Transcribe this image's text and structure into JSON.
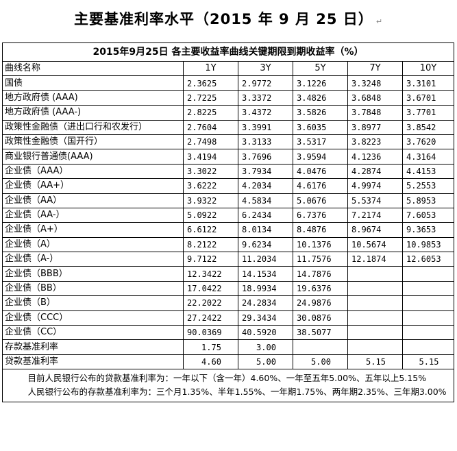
{
  "title": "主要基准利率水平（2015 年 9 月 25 日）",
  "return_mark": "↵",
  "table": {
    "caption": "2015年9月25日 各主要收益率曲线关键期限到期收益率（%）",
    "headers": [
      "曲线名称",
      "1Y",
      "3Y",
      "5Y",
      "7Y",
      "10Y"
    ],
    "rows": [
      {
        "name": "国债",
        "values": [
          "2.3625",
          "2.9772",
          "3.1226",
          "3.3248",
          "3.3101"
        ]
      },
      {
        "name": "地方政府债 (AAA)",
        "values": [
          "2.7225",
          "3.3372",
          "3.4826",
          "3.6848",
          "3.6701"
        ]
      },
      {
        "name": "地方政府债 (AAA-)",
        "values": [
          "2.8225",
          "3.4372",
          "3.5826",
          "3.7848",
          "3.7701"
        ]
      },
      {
        "name": "政策性金融债（进出口行和农发行）",
        "values": [
          "2.7604",
          "3.3991",
          "3.6035",
          "3.8977",
          "3.8542"
        ]
      },
      {
        "name": "政策性金融债（国开行）",
        "values": [
          "2.7498",
          "3.3133",
          "3.5317",
          "3.8223",
          "3.7620"
        ]
      },
      {
        "name": "商业银行普通债(AAA)",
        "values": [
          "3.4194",
          "3.7696",
          "3.9594",
          "4.1236",
          "4.3164"
        ]
      },
      {
        "name": "企业债（AAA）",
        "values": [
          "3.3022",
          "3.7934",
          "4.0476",
          "4.2874",
          "4.4153"
        ]
      },
      {
        "name": "企业债（AA+）",
        "values": [
          "3.6222",
          "4.2034",
          "4.6176",
          "4.9974",
          "5.2553"
        ]
      },
      {
        "name": "企业债（AA）",
        "values": [
          "3.9322",
          "4.5834",
          "5.0676",
          "5.5374",
          "5.8953"
        ]
      },
      {
        "name": "企业债（AA-）",
        "values": [
          "5.0922",
          "6.2434",
          "6.7376",
          "7.2174",
          "7.6053"
        ]
      },
      {
        "name": "企业债（A+）",
        "values": [
          "6.6122",
          "8.0134",
          "8.4876",
          "8.9674",
          "9.3653"
        ]
      },
      {
        "name": "企业债（A）",
        "values": [
          "8.2122",
          "9.6234",
          "10.1376",
          "10.5674",
          "10.9853"
        ]
      },
      {
        "name": "企业债（A-）",
        "values": [
          "9.7122",
          "11.2034",
          "11.7576",
          "12.1874",
          "12.6053"
        ]
      },
      {
        "name": "企业债（BBB）",
        "values": [
          "12.3422",
          "14.1534",
          "14.7876",
          "",
          ""
        ]
      },
      {
        "name": "企业债（BB）",
        "values": [
          "17.0422",
          "18.9934",
          "19.6376",
          "",
          ""
        ]
      },
      {
        "name": "企业债（B）",
        "values": [
          "22.2022",
          "24.2834",
          "24.9876",
          "",
          ""
        ]
      },
      {
        "name": "企业债（CCC）",
        "values": [
          "27.2422",
          "29.3434",
          "30.0876",
          "",
          ""
        ]
      },
      {
        "name": "企业债（CC）",
        "values": [
          "90.0369",
          "40.5920",
          "38.5077",
          "",
          ""
        ]
      },
      {
        "name": "存款基准利率",
        "values": [
          "1.75",
          "3.00",
          "",
          "",
          ""
        ]
      },
      {
        "name": "贷款基准利率",
        "values": [
          "4.60",
          "5.00",
          "5.00",
          "5.15",
          "5.15"
        ]
      }
    ]
  },
  "notes": [
    "目前人民银行公布的贷款基准利率为：一年以下（含一年）4.60%、一年至五年5.00%、五年以上5.15%",
    "人民银行公布的存款基准利率为：三个月1.35%、半年1.55%、一年期1.75%、两年期2.35%、三年期3.00%"
  ]
}
